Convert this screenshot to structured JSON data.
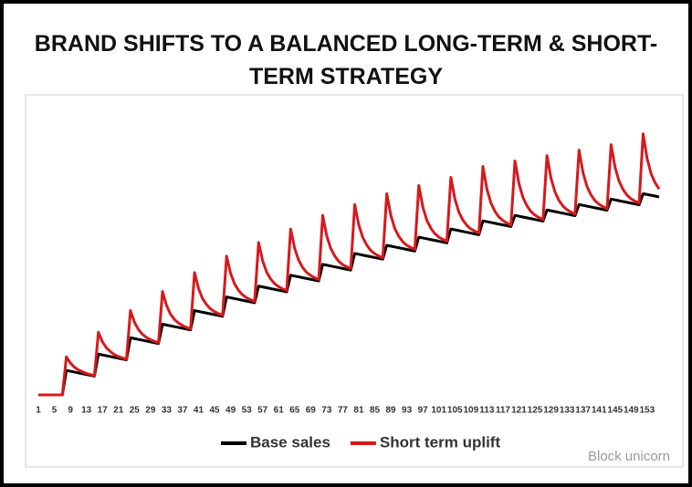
{
  "chart_data": {
    "type": "line",
    "title": "BRAND SHIFTS TO A BALANCED LONG-TERM & SHORT-TERM STRATEGY",
    "watermark": "Block unicorn",
    "categories": [
      "1",
      null,
      null,
      null,
      "5",
      null,
      null,
      null,
      "9",
      null,
      null,
      null,
      "13",
      null,
      null,
      null,
      "17",
      null,
      null,
      null,
      "21",
      null,
      null,
      null,
      "25",
      null,
      null,
      null,
      "29",
      null,
      null,
      null,
      "33",
      null,
      null,
      null,
      "37",
      null,
      null,
      null,
      "41",
      null,
      null,
      null,
      "45",
      null,
      null,
      null,
      "49",
      null,
      null,
      null,
      "53",
      null,
      null,
      null,
      "57",
      null,
      null,
      null,
      "61",
      null,
      null,
      null,
      "65",
      null,
      null,
      null,
      "69",
      null,
      null,
      null,
      "73",
      null,
      null,
      null,
      "77",
      null,
      null,
      null,
      "81",
      null,
      null,
      null,
      "85",
      null,
      null,
      null,
      "89",
      null,
      null,
      null,
      "93",
      null,
      null,
      null,
      "97",
      null,
      null,
      null,
      "101",
      null,
      null,
      null,
      "105",
      null,
      null,
      null,
      "109",
      null,
      null,
      null,
      "113",
      null,
      null,
      null,
      "117",
      null,
      null,
      null,
      "121",
      null,
      null,
      null,
      "125",
      null,
      null,
      null,
      "129",
      null,
      null,
      null,
      "133",
      null,
      null,
      null,
      "137",
      null,
      null,
      null,
      "141",
      null,
      null,
      null,
      "145",
      null,
      null,
      null,
      "149",
      null,
      null,
      null,
      "153",
      null,
      null,
      null
    ],
    "ylim": [
      0,
      110
    ],
    "legend": "bottom",
    "series": [
      {
        "name": "Base sales",
        "color": "#000000",
        "values": [
          0,
          0,
          0,
          0,
          0,
          0,
          0,
          9,
          8.7,
          8.4,
          8.1,
          7.8,
          7.5,
          7.2,
          6.9,
          15,
          14.7,
          14.4,
          14.1,
          13.8,
          13.5,
          13.2,
          12.9,
          21,
          20.7,
          20.4,
          20.1,
          19.8,
          19.5,
          19.2,
          18.9,
          26,
          25.7,
          25.4,
          25.1,
          24.8,
          24.5,
          24.2,
          23.9,
          31,
          30.7,
          30.4,
          30.1,
          29.8,
          29.5,
          29.2,
          28.9,
          36,
          35.7,
          35.4,
          35.1,
          34.8,
          34.5,
          34.2,
          33.9,
          40,
          39.7,
          39.4,
          39.1,
          38.8,
          38.5,
          38.2,
          37.9,
          44,
          43.7,
          43.4,
          43.1,
          42.8,
          42.5,
          42.2,
          41.9,
          48,
          47.7,
          47.4,
          47.1,
          46.8,
          46.5,
          46.2,
          45.9,
          52,
          51.7,
          51.4,
          51.1,
          50.8,
          50.5,
          50.2,
          49.9,
          55,
          54.7,
          54.4,
          54.1,
          53.8,
          53.5,
          53.2,
          52.9,
          58,
          57.7,
          57.4,
          57.1,
          56.8,
          56.5,
          56.2,
          55.9,
          61,
          60.7,
          60.4,
          60.1,
          59.8,
          59.5,
          59.2,
          58.9,
          64,
          63.7,
          63.4,
          63.1,
          62.8,
          62.5,
          62.2,
          61.9,
          66,
          65.7,
          65.4,
          65.1,
          64.8,
          64.5,
          64.2,
          63.9,
          68,
          67.7,
          67.4,
          67.1,
          66.8,
          66.5,
          66.2,
          65.9,
          70,
          69.7,
          69.4,
          69.1,
          68.8,
          68.5,
          68.2,
          67.9,
          72,
          71.7,
          71.4,
          71.1,
          70.8,
          70.5,
          70.2,
          69.9,
          74,
          73.7,
          73.4,
          73.1,
          72.8
        ]
      },
      {
        "name": "Short term uplift",
        "color": "#d7191c",
        "values": [
          0,
          0,
          0,
          0,
          0,
          0,
          0,
          14,
          11.7,
          10.2,
          9.2,
          8.5,
          7.9,
          7.5,
          7.1,
          23,
          19.5,
          17.3,
          15.9,
          14.8,
          14.1,
          13.6,
          13.1,
          31,
          26.7,
          24,
          22.3,
          21.1,
          20.3,
          19.7,
          19.2,
          38,
          32.9,
          29.7,
          27.7,
          26.4,
          25.5,
          24.8,
          24.3,
          45,
          39.1,
          35.4,
          33.2,
          31.6,
          30.6,
          29.9,
          29.3,
          51,
          44.7,
          40.8,
          38.4,
          36.8,
          35.7,
          35,
          34.4,
          56,
          49.3,
          45.2,
          42.6,
          40.9,
          39.8,
          39,
          38.4,
          61,
          53.9,
          49.5,
          46.8,
          45,
          43.9,
          43.1,
          42.4,
          66,
          58.5,
          53.9,
          51.1,
          49.1,
          47.9,
          47.1,
          46.4,
          70,
          62.5,
          57.9,
          55.1,
          53.1,
          51.9,
          51.1,
          50.4,
          74,
          66.1,
          61.2,
          58.3,
          56.3,
          55,
          54.2,
          53.5,
          77,
          69.1,
          64.2,
          61.3,
          59.3,
          58,
          57.2,
          56.5,
          80,
          72.1,
          67.2,
          64.3,
          62.3,
          61,
          60.2,
          59.5,
          84,
          75.7,
          70.6,
          67.5,
          65.4,
          64.1,
          63.2,
          62.5,
          86,
          77.7,
          72.6,
          69.5,
          67.4,
          66.1,
          65.2,
          64.5,
          88,
          79.7,
          74.6,
          71.5,
          69.4,
          68.1,
          67.2,
          66.5,
          90,
          81.7,
          76.6,
          73.5,
          71.4,
          70.1,
          69.2,
          68.5,
          92,
          83.7,
          78.6,
          75.5,
          73.4,
          72.1,
          71.2,
          70.5,
          96,
          86.9,
          81.3,
          78,
          75.7
        ]
      }
    ]
  }
}
